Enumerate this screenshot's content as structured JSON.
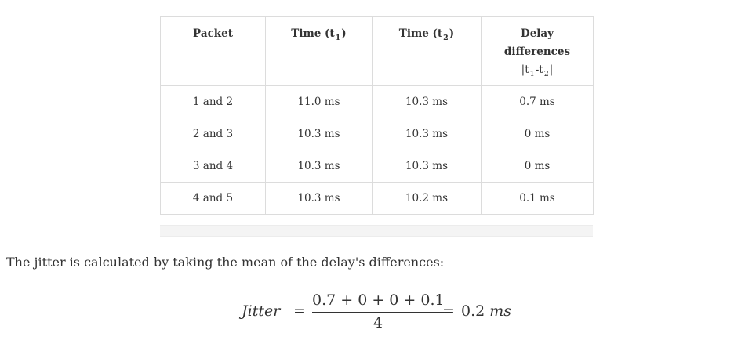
{
  "table": {
    "headers": {
      "packet": "Packet",
      "time1": {
        "label": "Time (t",
        "sub": "1",
        "suffix": ")"
      },
      "time2": {
        "label": "Time (t",
        "sub": "2",
        "suffix": ")"
      },
      "delay": {
        "line1": "Delay",
        "line2": "differences",
        "abs_open": "|t",
        "abs_sub1": "1",
        "abs_mid": "-t",
        "abs_sub2": "2",
        "abs_close": "|"
      }
    },
    "rows": [
      {
        "packet": "1 and 2",
        "t1": "11.0 ms",
        "t2": "10.3 ms",
        "diff": "0.7 ms"
      },
      {
        "packet": "2 and 3",
        "t1": "10.3 ms",
        "t2": "10.3 ms",
        "diff": "0 ms"
      },
      {
        "packet": "3 and 4",
        "t1": "10.3 ms",
        "t2": "10.3 ms",
        "diff": "0 ms"
      },
      {
        "packet": "4 and 5",
        "t1": "10.3 ms",
        "t2": "10.2 ms",
        "diff": "0.1 ms"
      }
    ]
  },
  "paragraph": "The jitter is calculated by taking the mean of the delay's differences:",
  "formula": {
    "lhs": "Jitter",
    "equals": "=",
    "numerator": "0.7 + 0 + 0 + 0.1",
    "denominator": "4",
    "result_value": "0.2",
    "result_unit": "ms"
  }
}
